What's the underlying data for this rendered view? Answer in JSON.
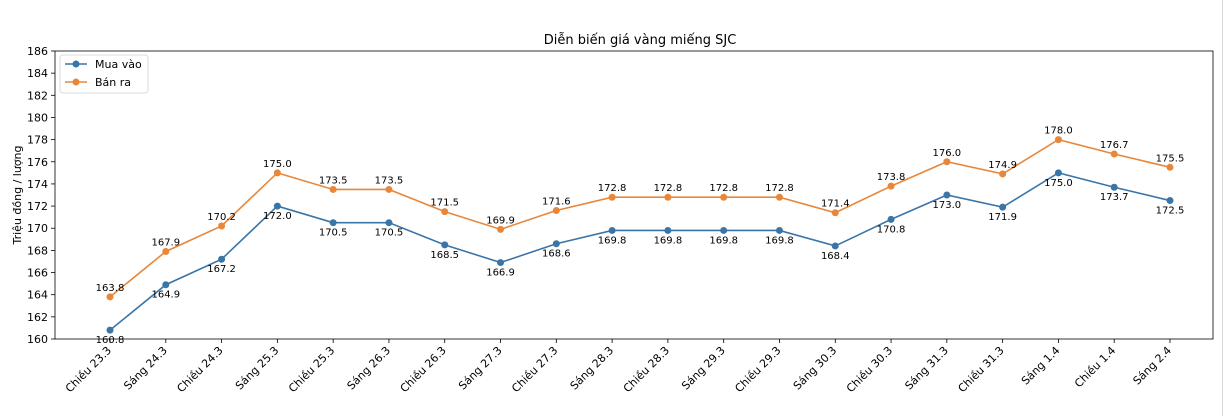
{
  "chart_data": {
    "type": "line",
    "title": "Diễn biến giá vàng miếng SJC",
    "xlabel": "",
    "ylabel": "Triệu đồng / lượng",
    "categories": [
      "Chiều 23.3",
      "Sáng 24.3",
      "Chiều 24.3",
      "Sáng 25.3",
      "Chiều 25.3",
      "Sáng 26.3",
      "Chiều 26.3",
      "Sáng 27.3",
      "Chiều 27.3",
      "Sáng 28.3",
      "Chiều 28.3",
      "Sáng 29.3",
      "Chiều 29.3",
      "Sáng 30.3",
      "Chiều 30.3",
      "Sáng 31.3",
      "Chiều 31.3",
      "Sáng 1.4",
      "Chiều 1.4",
      "Sáng 2.4"
    ],
    "ylim": [
      160,
      186
    ],
    "yticks": [
      160,
      162,
      164,
      166,
      168,
      170,
      172,
      174,
      176,
      178,
      180,
      182,
      184,
      186
    ],
    "grid": false,
    "legend": "top-left",
    "series": [
      {
        "name": "Mua vào",
        "color": "#3a75a8",
        "values": [
          160.8,
          164.9,
          167.2,
          172.0,
          170.5,
          170.5,
          168.5,
          166.9,
          168.6,
          169.8,
          169.8,
          169.8,
          169.8,
          168.4,
          170.8,
          173.0,
          171.9,
          175.0,
          173.7,
          172.5
        ]
      },
      {
        "name": "Bán ra",
        "color": "#e8873a",
        "values": [
          163.8,
          167.9,
          170.2,
          175.0,
          173.5,
          173.5,
          171.5,
          169.9,
          171.6,
          172.8,
          172.8,
          172.8,
          172.8,
          171.4,
          173.8,
          176.0,
          174.9,
          178.0,
          176.7,
          175.5
        ]
      }
    ]
  }
}
